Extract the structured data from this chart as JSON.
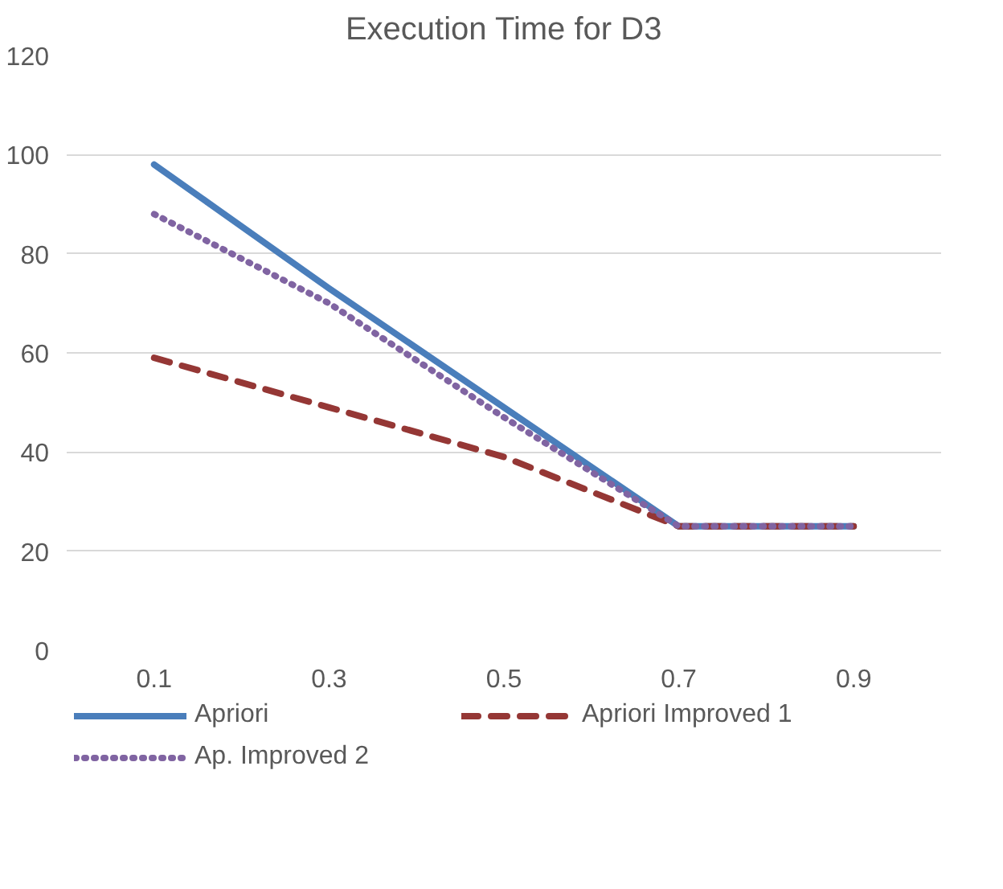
{
  "chart_data": {
    "type": "line",
    "title": "Execution Time for D3",
    "categories": [
      "0.1",
      "0.3",
      "0.5",
      "0.7",
      "0.9"
    ],
    "ylim": [
      0,
      120
    ],
    "yticks": [
      0,
      20,
      40,
      60,
      80,
      100,
      120
    ],
    "grid": "y",
    "legend": "bottom",
    "series": [
      {
        "name": "Apriori",
        "color": "#4a7ebb",
        "values": [
          98,
          73,
          49,
          25,
          25
        ],
        "line_style": "solid"
      },
      {
        "name": "Apriori Improved 1",
        "color": "#953735",
        "values": [
          59,
          49,
          39,
          25,
          25
        ],
        "line_style": "dashed"
      },
      {
        "name": "Ap. Improved 2",
        "color": "#8064a2",
        "values": [
          88,
          70,
          47,
          25,
          25
        ],
        "line_style": "dotted"
      }
    ]
  }
}
